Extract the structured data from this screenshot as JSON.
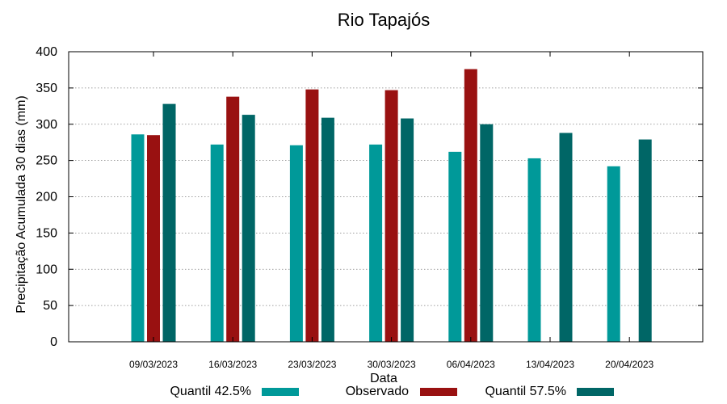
{
  "chart_data": {
    "type": "bar",
    "title": "Rio Tapajós",
    "xlabel": "Data",
    "ylabel": "Precipitação Acumulada 30 dias (mm)",
    "ylim": [
      0,
      400
    ],
    "yticks": [
      0,
      50,
      100,
      150,
      200,
      250,
      300,
      350,
      400
    ],
    "grid": true,
    "legend_position": "bottom",
    "categories": [
      "09/03/2023",
      "16/03/2023",
      "23/03/2023",
      "30/03/2023",
      "06/04/2023",
      "13/04/2023",
      "20/04/2023"
    ],
    "series": [
      {
        "name": "Quantil 42.5%",
        "color": "#009999",
        "values": [
          286,
          272,
          271,
          272,
          262,
          253,
          242
        ]
      },
      {
        "name": "Observado",
        "color": "#991111",
        "values": [
          285,
          338,
          348,
          347,
          376,
          null,
          null
        ]
      },
      {
        "name": "Quantil 57.5%",
        "color": "#006666",
        "values": [
          328,
          313,
          309,
          308,
          300,
          288,
          279
        ]
      }
    ]
  }
}
